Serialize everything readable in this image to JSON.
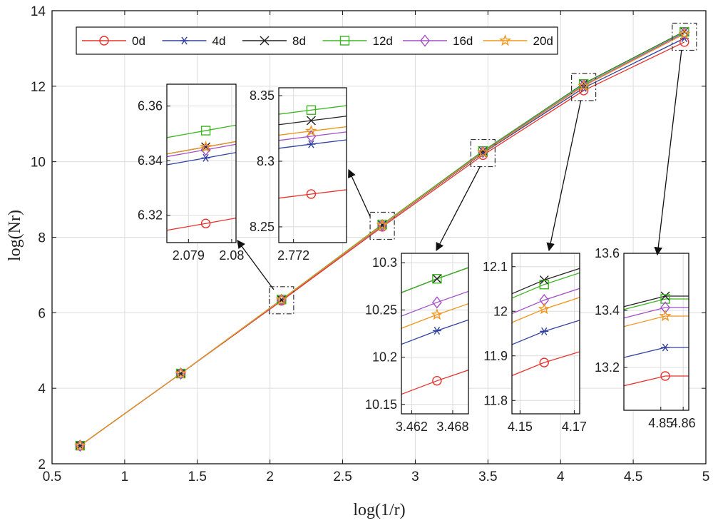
{
  "chart_data": {
    "type": "line",
    "xlabel": "log(1/r)",
    "ylabel": "log(Nr)",
    "xlim": [
      0.5,
      5
    ],
    "ylim": [
      2,
      14
    ],
    "xticks": [
      "0.5",
      "1",
      "1.5",
      "2",
      "2.5",
      "3",
      "3.5",
      "4",
      "4.5",
      "5"
    ],
    "yticks": [
      "2",
      "4",
      "6",
      "8",
      "10",
      "12",
      "14"
    ],
    "grid": true,
    "legend_position": "top-left",
    "x": [
      0.693,
      1.386,
      2.0794,
      2.7726,
      3.4657,
      4.1589,
      4.852
    ],
    "series": [
      {
        "name": "0d",
        "color": "#e8322c",
        "marker": "circle",
        "values": [
          2.48,
          4.39,
          6.317,
          8.275,
          10.175,
          11.885,
          13.17
        ]
      },
      {
        "name": "4d",
        "color": "#3040a0",
        "marker": "asterisk",
        "values": [
          2.48,
          4.39,
          6.341,
          8.313,
          10.228,
          11.955,
          13.27
        ]
      },
      {
        "name": "8d",
        "color": "#222222",
        "marker": "x",
        "values": [
          2.48,
          4.39,
          6.345,
          8.331,
          10.283,
          12.07,
          13.45
        ]
      },
      {
        "name": "12d",
        "color": "#3cb521",
        "marker": "square",
        "values": [
          2.48,
          4.39,
          6.351,
          8.339,
          10.283,
          12.06,
          13.44
        ]
      },
      {
        "name": "16d",
        "color": "#a24fc6",
        "marker": "diamond",
        "values": [
          2.48,
          4.39,
          6.344,
          8.319,
          10.258,
          12.025,
          13.41
        ]
      },
      {
        "name": "20d",
        "color": "#f0951e",
        "marker": "star",
        "values": [
          2.48,
          4.39,
          6.345,
          8.323,
          10.245,
          12.005,
          13.38
        ]
      }
    ],
    "insets": [
      {
        "id": "inset-1",
        "point_index": 2,
        "xlim": [
          2.0785,
          2.0801
        ],
        "ylim": [
          6.31,
          6.368
        ],
        "xticks": [
          {
            "v": 2.079,
            "label": "2.079"
          },
          {
            "v": 2.08,
            "label": "2.08"
          }
        ],
        "yticks": [
          {
            "v": 6.32,
            "label": "6.32"
          },
          {
            "v": 6.34,
            "label": "6.34"
          },
          {
            "v": 6.36,
            "label": "6.36"
          }
        ]
      },
      {
        "id": "inset-2",
        "point_index": 3,
        "xlim": [
          2.7715,
          2.7738
        ],
        "ylim": [
          8.238,
          8.356
        ],
        "xticks": [
          {
            "v": 2.772,
            "label": "2.772"
          }
        ],
        "yticks": [
          {
            "v": 8.25,
            "label": "8.25"
          },
          {
            "v": 8.3,
            "label": "8.3"
          },
          {
            "v": 8.35,
            "label": "8.35"
          }
        ]
      },
      {
        "id": "inset-3",
        "point_index": 4,
        "xlim": [
          3.4605,
          3.4703
        ],
        "ylim": [
          10.14,
          10.31
        ],
        "xticks": [
          {
            "v": 3.462,
            "label": "3.462"
          },
          {
            "v": 3.468,
            "label": "3.468"
          }
        ],
        "yticks": [
          {
            "v": 10.15,
            "label": "10.15"
          },
          {
            "v": 10.2,
            "label": "10.2"
          },
          {
            "v": 10.25,
            "label": "10.25"
          },
          {
            "v": 10.3,
            "label": "10.3"
          }
        ]
      },
      {
        "id": "inset-4",
        "point_index": 5,
        "xlim": [
          4.147,
          4.172
        ],
        "ylim": [
          11.77,
          12.13
        ],
        "xticks": [
          {
            "v": 4.15,
            "label": "4.15"
          },
          {
            "v": 4.17,
            "label": "4.17"
          }
        ],
        "yticks": [
          {
            "v": 11.8,
            "label": "11.8"
          },
          {
            "v": 11.9,
            "label": "11.9"
          },
          {
            "v": 12.0,
            "label": "12"
          },
          {
            "v": 12.1,
            "label": "12.1"
          }
        ]
      },
      {
        "id": "inset-5",
        "point_index": 6,
        "xlim": [
          4.8335,
          4.8625
        ],
        "ylim": [
          13.05,
          13.6
        ],
        "xticks": [
          {
            "v": 4.85,
            "label": "4.85"
          },
          {
            "v": 4.86,
            "label": "4.86"
          }
        ],
        "yticks": [
          {
            "v": 13.2,
            "label": "13.2"
          },
          {
            "v": 13.4,
            "label": "13.4"
          },
          {
            "v": 13.6,
            "label": "13.6"
          }
        ]
      }
    ]
  }
}
